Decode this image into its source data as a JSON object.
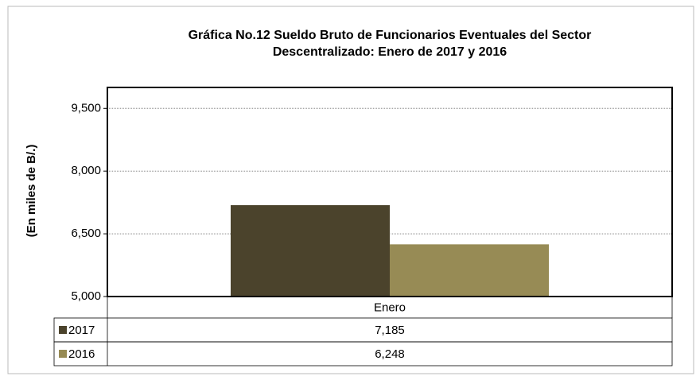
{
  "chart_data": {
    "type": "bar",
    "title": "Gráfica No.12 Sueldo Bruto de Funcionarios Eventuales del Sector Descentralizado: Enero de 2017 y 2016",
    "ylabel": "(En miles de B/.)",
    "categories": [
      "Enero"
    ],
    "series": [
      {
        "name": "2017",
        "color": "#4b432c",
        "values": [
          7185
        ],
        "value_labels": [
          "7,185"
        ]
      },
      {
        "name": "2016",
        "color": "#978b55",
        "values": [
          6248
        ],
        "value_labels": [
          "6,248"
        ]
      }
    ],
    "ylim": [
      5000,
      10000
    ],
    "yticks": [
      {
        "value": 5000,
        "label": "5,000"
      },
      {
        "value": 6500,
        "label": "6,500"
      },
      {
        "value": 8000,
        "label": "8,000"
      },
      {
        "value": 9500,
        "label": "9,500"
      }
    ],
    "grid": true
  }
}
